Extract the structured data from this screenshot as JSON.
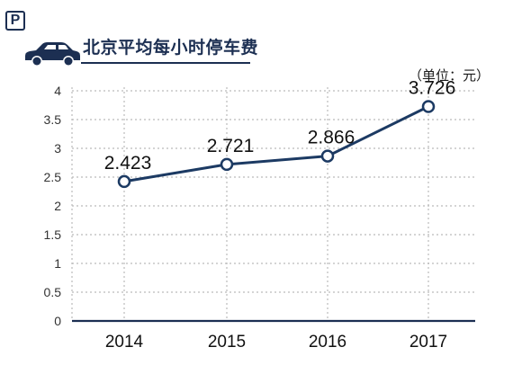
{
  "header": {
    "badge_letter": "P",
    "title": "北京平均每小时停车费",
    "unit": "（单位：元）"
  },
  "icons": {
    "badge": "parking-sign-icon",
    "car": "car-icon"
  },
  "colors": {
    "primary": "#1c2f52",
    "line": "#1c3a63",
    "grid": "#bbbbbb"
  },
  "chart_data": {
    "type": "line",
    "categories": [
      "2014",
      "2015",
      "2016",
      "2017"
    ],
    "series": [
      {
        "values": [
          2.423,
          2.721,
          2.866,
          3.726
        ]
      }
    ],
    "data_labels": [
      "2.423",
      "2.721",
      "2.866",
      "3.726"
    ],
    "title": "北京平均每小时停车费",
    "xlabel": "",
    "ylabel": "",
    "unit": "（单位：元）",
    "ylim": [
      0,
      4
    ],
    "yticks": [
      0,
      0.5,
      1,
      1.5,
      2,
      2.5,
      3,
      3.5,
      4
    ],
    "ytick_labels": [
      "0",
      "0.5",
      "1",
      "1.5",
      "2",
      "2.5",
      "3",
      "3.5",
      "4"
    ],
    "grid": true,
    "legend": "none"
  }
}
